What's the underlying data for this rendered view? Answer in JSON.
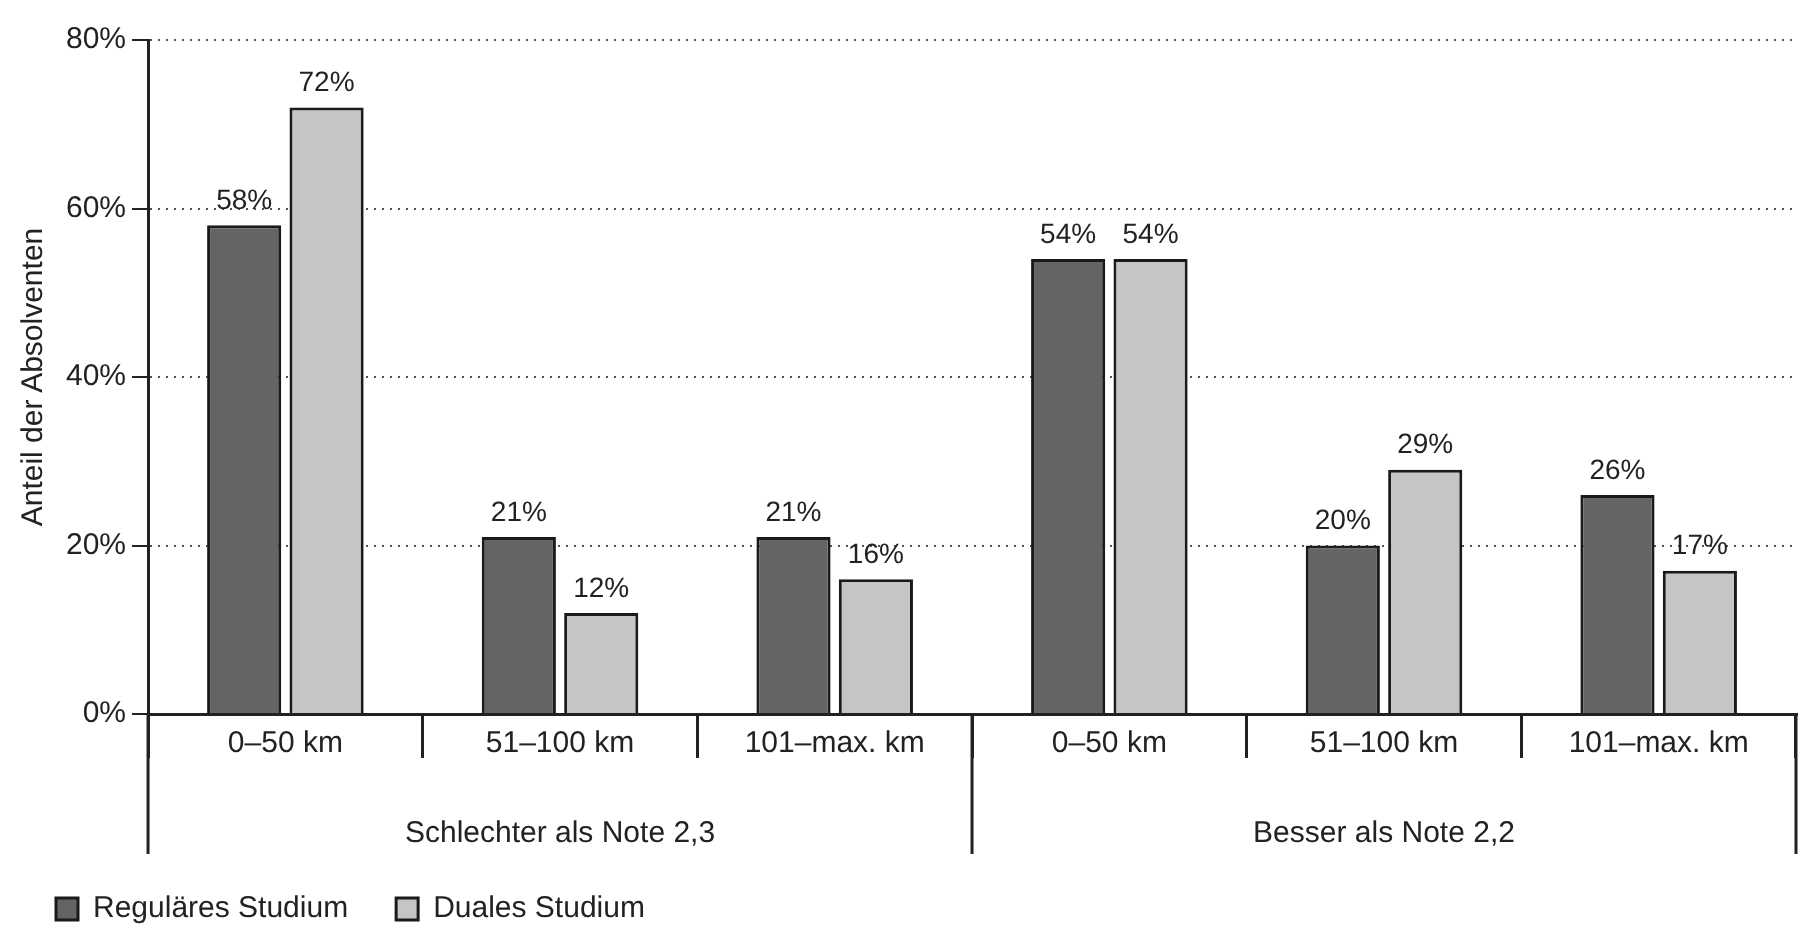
{
  "chart_data": {
    "type": "bar",
    "ylabel": "Anteil der Absolventen",
    "categories": [
      "0–50 km",
      "51–100 km",
      "101–max. km",
      "0–50 km",
      "51–100 km",
      "101–max. km"
    ],
    "series": [
      {
        "name": "Reguläres Studium",
        "color": "#646464",
        "values": [
          58,
          21,
          21,
          54,
          20,
          26
        ],
        "value_labels": [
          "58%",
          "21%",
          "21%",
          "54%",
          "20%",
          "26%"
        ]
      },
      {
        "name": "Duales Studium",
        "color": "#c4c5c4",
        "values": [
          72,
          12,
          16,
          54,
          29,
          17
        ],
        "value_labels": [
          "72%",
          "12%",
          "16%",
          "54%",
          "29%",
          "17%"
        ]
      }
    ],
    "ylim": [
      0,
      80
    ],
    "yticks": [
      {
        "value": 0,
        "label": "0%"
      },
      {
        "value": 20,
        "label": "20%"
      },
      {
        "value": 40,
        "label": "40%"
      },
      {
        "value": 60,
        "label": "60%"
      },
      {
        "value": 80,
        "label": "80%"
      }
    ],
    "grid": "y",
    "legend": "bottom left",
    "annotations": [
      "Schlechter als Note 2,3",
      "Besser als Note 2,2"
    ]
  }
}
